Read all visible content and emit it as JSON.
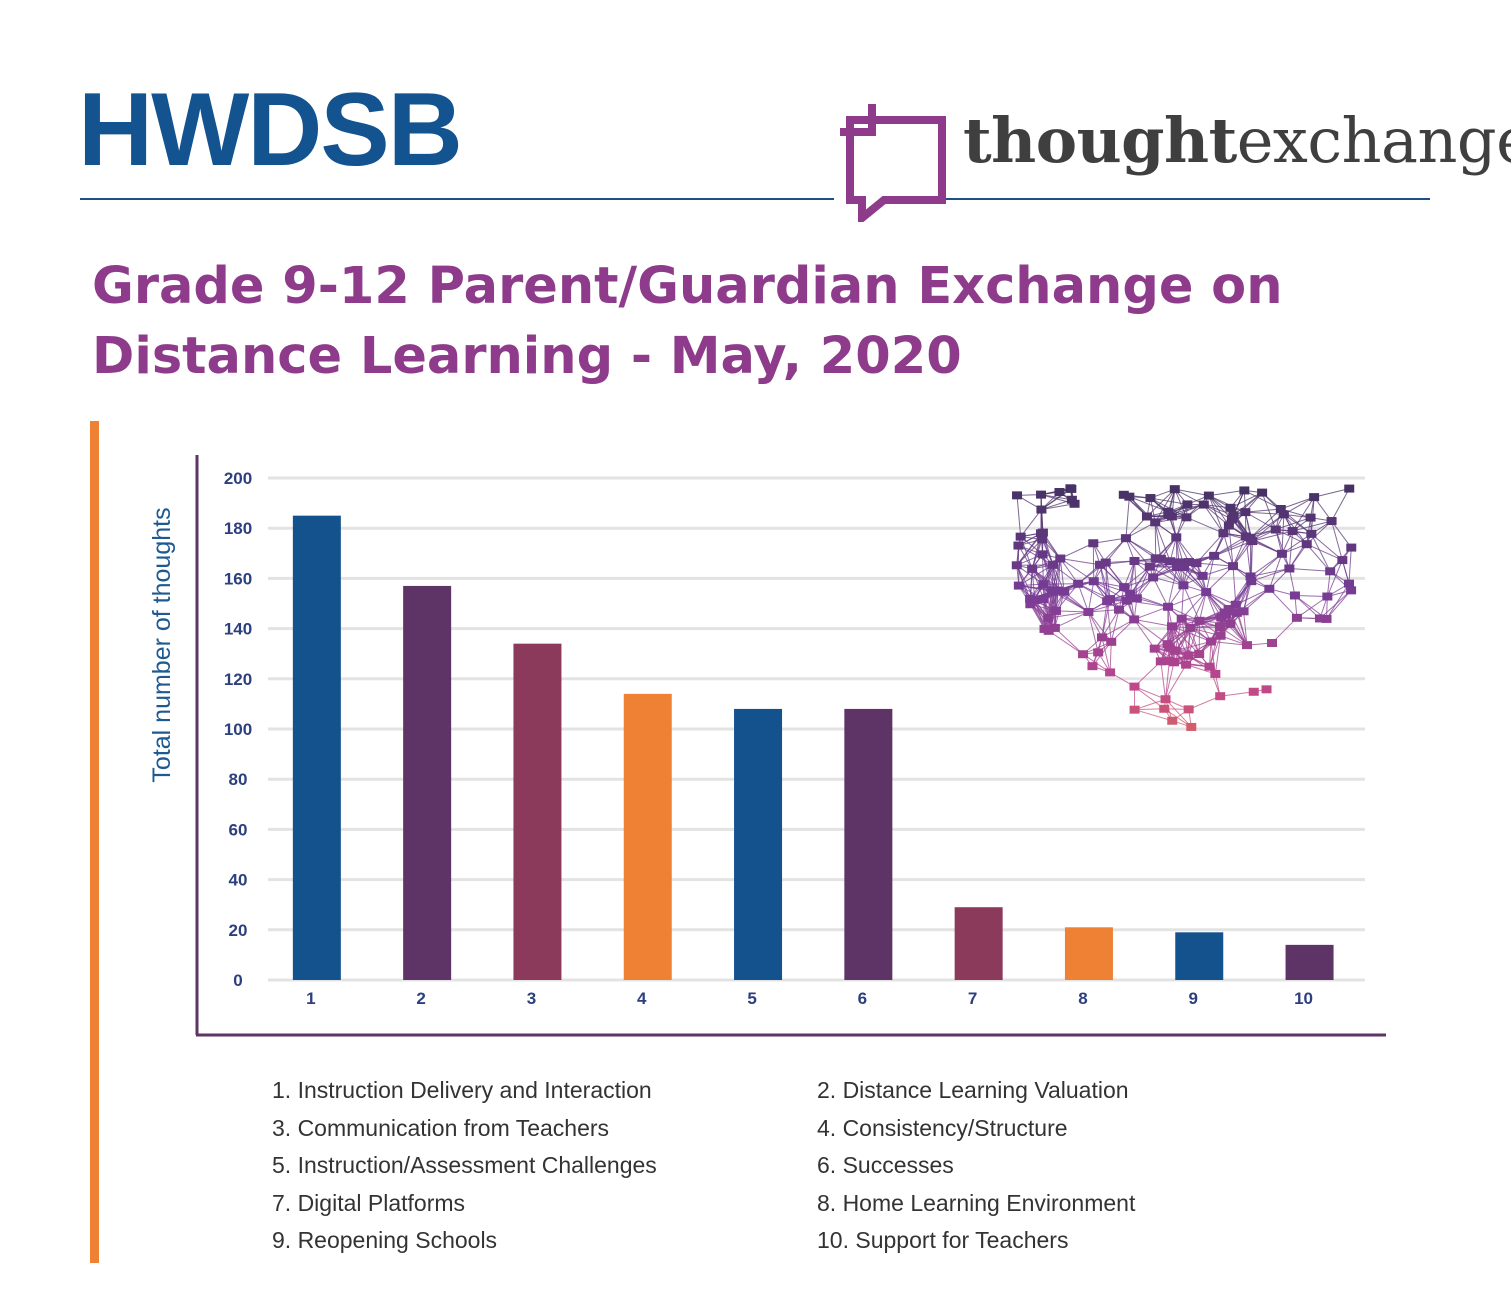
{
  "header": {
    "left_logo": "HWDSB",
    "right_logo_bold": "thought",
    "right_logo_light": "exchange"
  },
  "title_line1": "Grade 9-12 Parent/Guardian Exchange on",
  "title_line2": "Distance Learning - May, 2020",
  "colors": {
    "blue": "#14528e",
    "purple": "#5e3366",
    "maroon": "#8b3a5c",
    "orange": "#ef8134",
    "title": "#8d3b8a",
    "accent_bar": "#ef8134"
  },
  "chart_data": {
    "type": "bar",
    "categories": [
      "1",
      "2",
      "3",
      "4",
      "5",
      "6",
      "7",
      "8",
      "9",
      "10"
    ],
    "values": [
      185,
      157,
      134,
      114,
      108,
      108,
      29,
      21,
      19,
      14
    ],
    "bar_colors": [
      "#14528e",
      "#5e3366",
      "#8b3a5c",
      "#ef8134",
      "#14528e",
      "#5e3366",
      "#8b3a5c",
      "#ef8134",
      "#14528e",
      "#5e3366"
    ],
    "ylabel": "Total number of thoughts",
    "xlabel": "",
    "ylim": [
      0,
      200
    ],
    "yticks": [
      0,
      20,
      40,
      60,
      80,
      100,
      120,
      140,
      160,
      180,
      200
    ],
    "grid": true
  },
  "legend": [
    "1. Instruction Delivery and Interaction",
    "2. Distance Learning Valuation",
    "3. Communication from Teachers",
    "4. Consistency/Structure",
    "5. Instruction/Assessment Challenges",
    "6. Successes",
    "7. Digital Platforms",
    "8. Home Learning Environment",
    "9. Reopening Schools",
    "10. Support for Teachers"
  ]
}
